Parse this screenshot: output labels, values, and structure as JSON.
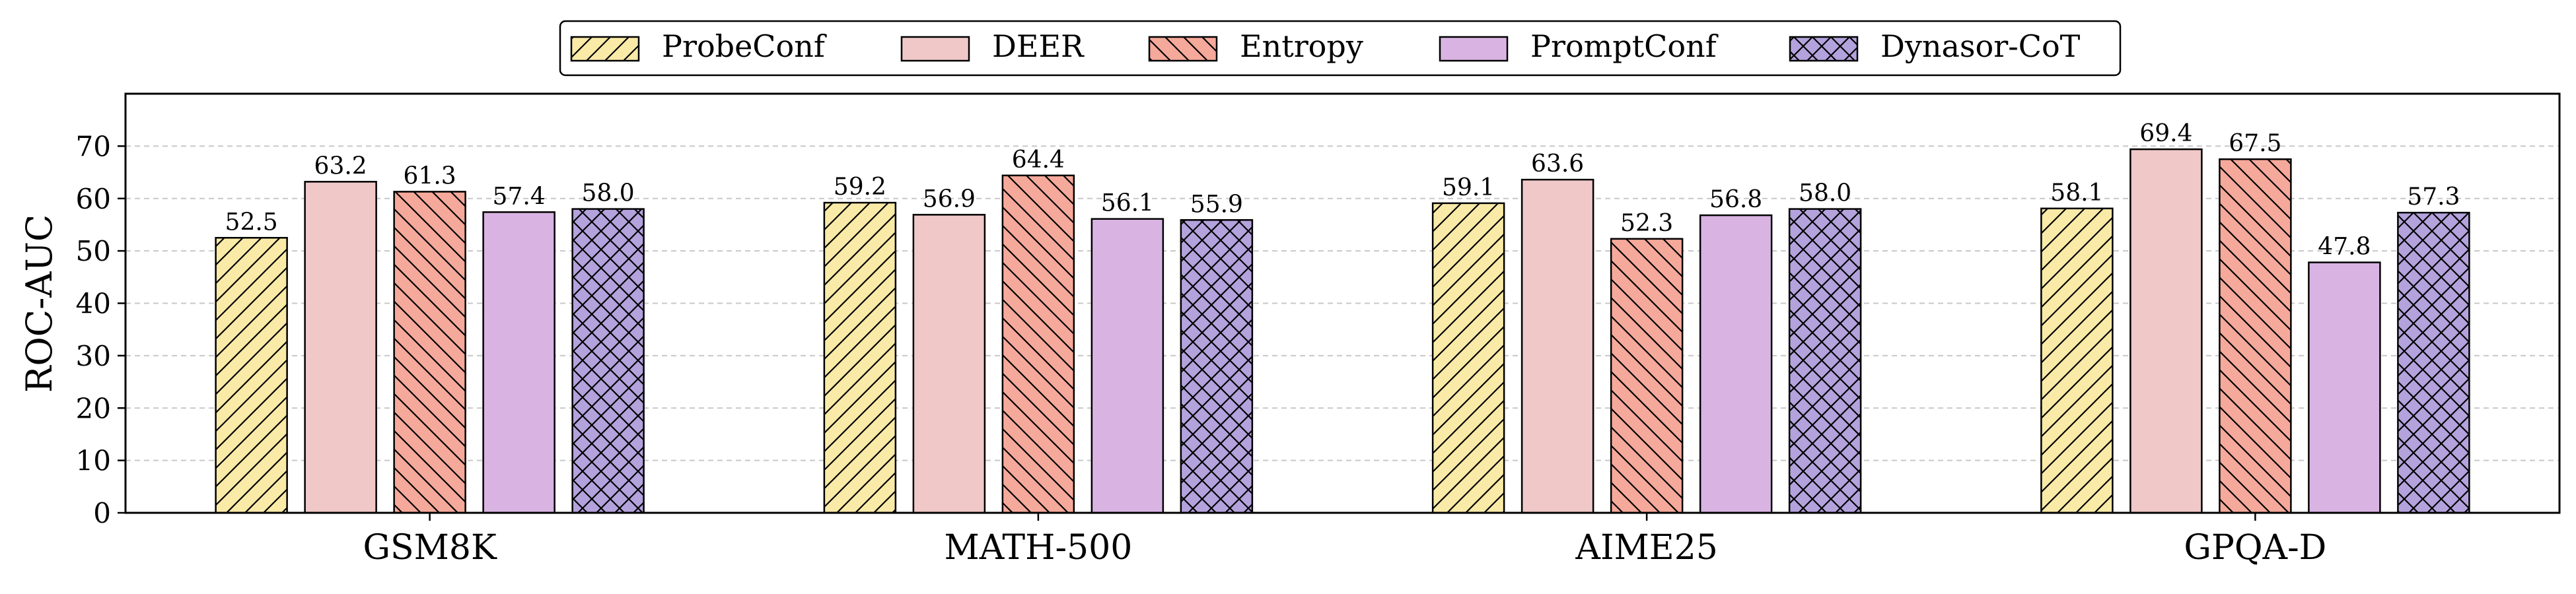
{
  "chart_data": {
    "type": "bar",
    "categories": [
      "GSM8K",
      "MATH-500",
      "AIME25",
      "GPQA-D"
    ],
    "series": [
      {
        "name": "ProbeConf",
        "values": [
          52.5,
          59.2,
          59.1,
          58.1
        ],
        "color": "#f9eaa8",
        "pattern": "diag-forward"
      },
      {
        "name": "DEER",
        "values": [
          63.2,
          56.9,
          63.6,
          69.4
        ],
        "color": "#f0c8c8",
        "pattern": "none"
      },
      {
        "name": "Entropy",
        "values": [
          61.3,
          64.4,
          52.3,
          67.5
        ],
        "color": "#f5a99a",
        "pattern": "diag-back"
      },
      {
        "name": "PromptConf",
        "values": [
          57.4,
          56.1,
          56.8,
          47.8
        ],
        "color": "#d9b4e3",
        "pattern": "none"
      },
      {
        "name": "Dynasor-CoT",
        "values": [
          58.0,
          55.9,
          58.0,
          57.3
        ],
        "color": "#b3a2dc",
        "pattern": "crosshatch"
      }
    ],
    "ylabel": "ROC-AUC",
    "xlabel": "",
    "ylim": [
      0,
      80
    ],
    "yticks": [
      0,
      10,
      20,
      30,
      40,
      50,
      60,
      70
    ],
    "grid": "horizontal-dashed",
    "legend": "top-center"
  }
}
